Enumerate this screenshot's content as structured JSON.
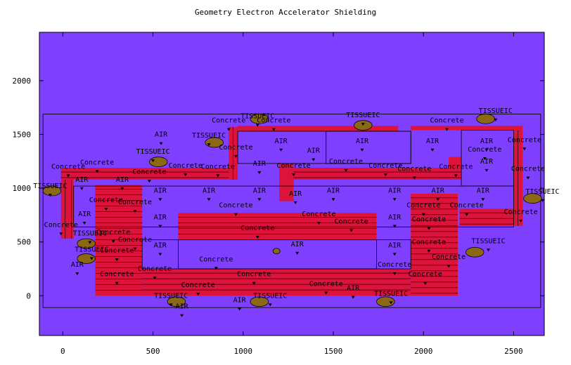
{
  "title": "Geometry Electron Accelerator Shielding",
  "colors": {
    "background": "#7f3fff",
    "concrete": "#dc143c",
    "tissue": "#8b6914",
    "line": "#000000"
  },
  "axes": {
    "x_ticks": [
      0,
      500,
      1000,
      1500,
      2000,
      2500
    ],
    "y_ticks": [
      0,
      500,
      1000,
      1500,
      2000
    ]
  },
  "chart_data": {
    "type": "geometry",
    "title": "Geometry Electron Accelerator Shielding",
    "xlim": [
      -130,
      2670
    ],
    "ylim": [
      -370,
      2450
    ],
    "regions": {
      "concrete": [
        [
          920,
          970,
          1080,
          1570
        ],
        [
          970,
          1860,
          1530,
          1580
        ],
        [
          1930,
          2550,
          1540,
          1580
        ],
        [
          2500,
          2550,
          650,
          1540
        ],
        [
          2200,
          2500,
          650,
          810
        ],
        [
          1200,
          1280,
          880,
          1230
        ],
        [
          1280,
          2210,
          1080,
          1190
        ],
        [
          2140,
          2210,
          1190,
          1290
        ],
        [
          -10,
          920,
          1080,
          1190
        ],
        [
          -10,
          60,
          530,
          1080
        ],
        [
          180,
          440,
          0,
          1030
        ],
        [
          440,
          1930,
          0,
          250
        ],
        [
          1930,
          2190,
          0,
          950
        ],
        [
          640,
          1740,
          520,
          770
        ]
      ],
      "tissue": [
        [
          -60,
          975,
          50,
          45
        ],
        [
          530,
          1245,
          50,
          45
        ],
        [
          840,
          1425,
          50,
          45
        ],
        [
          1090,
          1645,
          50,
          45
        ],
        [
          1665,
          1585,
          50,
          45
        ],
        [
          2345,
          1645,
          50,
          45
        ],
        [
          2605,
          905,
          50,
          45
        ],
        [
          2285,
          405,
          50,
          45
        ],
        [
          1790,
          -55,
          50,
          45
        ],
        [
          1090,
          -55,
          50,
          45
        ],
        [
          630,
          -55,
          50,
          45
        ],
        [
          130,
          485,
          50,
          45
        ],
        [
          130,
          345,
          50,
          45
        ],
        [
          1185,
          415,
          18,
          12
        ]
      ]
    },
    "labels": [
      {
        "text": "Concrete",
        "x": 920,
        "y": 1610
      },
      {
        "text": "TISSUEIC",
        "x": 1080,
        "y": 1650
      },
      {
        "text": "Concrete",
        "x": 1170,
        "y": 1610
      },
      {
        "text": "TISSUEIC",
        "x": 1665,
        "y": 1660
      },
      {
        "text": "Concrete",
        "x": 2130,
        "y": 1610
      },
      {
        "text": "TISSUEIC",
        "x": 2400,
        "y": 1700
      },
      {
        "text": "AIR",
        "x": 545,
        "y": 1480
      },
      {
        "text": "TISSUEIC",
        "x": 810,
        "y": 1470
      },
      {
        "text": "AIR",
        "x": 1210,
        "y": 1420
      },
      {
        "text": "AIR",
        "x": 1660,
        "y": 1420
      },
      {
        "text": "AIR",
        "x": 2050,
        "y": 1420
      },
      {
        "text": "AIR",
        "x": 2350,
        "y": 1420
      },
      {
        "text": "Concrete",
        "x": 2560,
        "y": 1430
      },
      {
        "text": "Concrete",
        "x": 960,
        "y": 1360
      },
      {
        "text": "AIR",
        "x": 1390,
        "y": 1330
      },
      {
        "text": "Concrete",
        "x": 2340,
        "y": 1340
      },
      {
        "text": "TISSUEIC",
        "x": 500,
        "y": 1320
      },
      {
        "text": "Concrete",
        "x": 190,
        "y": 1220
      },
      {
        "text": "Concrete",
        "x": 680,
        "y": 1190
      },
      {
        "text": "Concrete",
        "x": 860,
        "y": 1180
      },
      {
        "text": "AIR",
        "x": 1090,
        "y": 1210
      },
      {
        "text": "Concrete",
        "x": 1280,
        "y": 1190
      },
      {
        "text": "Concrete",
        "x": 1570,
        "y": 1230
      },
      {
        "text": "Concrete",
        "x": 1790,
        "y": 1190
      },
      {
        "text": "Concrete",
        "x": 1950,
        "y": 1160
      },
      {
        "text": "Concrete",
        "x": 2180,
        "y": 1180
      },
      {
        "text": "AIR",
        "x": 2350,
        "y": 1230
      },
      {
        "text": "Concrete",
        "x": 2580,
        "y": 1160
      },
      {
        "text": "Concrete",
        "x": 30,
        "y": 1180
      },
      {
        "text": "TISSUEIC",
        "x": -70,
        "y": 1000
      },
      {
        "text": "AIR",
        "x": 105,
        "y": 1060
      },
      {
        "text": "AIR",
        "x": 330,
        "y": 1060
      },
      {
        "text": "Concrete",
        "x": 480,
        "y": 1130
      },
      {
        "text": "AIR",
        "x": 540,
        "y": 960
      },
      {
        "text": "AIR",
        "x": 810,
        "y": 960
      },
      {
        "text": "AIR",
        "x": 1090,
        "y": 960
      },
      {
        "text": "AIR",
        "x": 1290,
        "y": 930
      },
      {
        "text": "AIR",
        "x": 1500,
        "y": 960
      },
      {
        "text": "AIR",
        "x": 1840,
        "y": 960
      },
      {
        "text": "AIR",
        "x": 2080,
        "y": 960
      },
      {
        "text": "AIR",
        "x": 2330,
        "y": 960
      },
      {
        "text": "TISSUEIC",
        "x": 2660,
        "y": 950
      },
      {
        "text": "Concrete",
        "x": 240,
        "y": 870
      },
      {
        "text": "Concrete",
        "x": 400,
        "y": 850
      },
      {
        "text": "Concrete",
        "x": 960,
        "y": 820
      },
      {
        "text": "Concrete",
        "x": 2000,
        "y": 820
      },
      {
        "text": "Concrete",
        "x": 2240,
        "y": 820
      },
      {
        "text": "Concrete",
        "x": 2540,
        "y": 760
      },
      {
        "text": "AIR",
        "x": 120,
        "y": 740
      },
      {
        "text": "AIR",
        "x": 540,
        "y": 710
      },
      {
        "text": "Concrete",
        "x": 1420,
        "y": 740
      },
      {
        "text": "Concrete",
        "x": 1600,
        "y": 670
      },
      {
        "text": "AIR",
        "x": 1840,
        "y": 710
      },
      {
        "text": "Concrete",
        "x": 2030,
        "y": 690
      },
      {
        "text": "Concrete",
        "x": -10,
        "y": 640
      },
      {
        "text": "Concrete",
        "x": 1080,
        "y": 610
      },
      {
        "text": "TISSUEIC",
        "x": 150,
        "y": 560
      },
      {
        "text": "Concrete",
        "x": 280,
        "y": 570
      },
      {
        "text": "Concrete",
        "x": 400,
        "y": 500
      },
      {
        "text": "AIR",
        "x": 540,
        "y": 450
      },
      {
        "text": "AIR",
        "x": 1300,
        "y": 460
      },
      {
        "text": "AIR",
        "x": 1840,
        "y": 450
      },
      {
        "text": "Concrete",
        "x": 2030,
        "y": 480
      },
      {
        "text": "TISSUEIC",
        "x": 2360,
        "y": 490
      },
      {
        "text": "TISSUEIC",
        "x": 160,
        "y": 410
      },
      {
        "text": "Concrete",
        "x": 300,
        "y": 400
      },
      {
        "text": "Concrete",
        "x": 2140,
        "y": 340
      },
      {
        "text": "AIR",
        "x": 80,
        "y": 270
      },
      {
        "text": "Concrete",
        "x": 850,
        "y": 320
      },
      {
        "text": "Concrete",
        "x": 1840,
        "y": 270
      },
      {
        "text": "Concrete",
        "x": 510,
        "y": 230
      },
      {
        "text": "Concrete",
        "x": 300,
        "y": 180
      },
      {
        "text": "Concrete",
        "x": 1060,
        "y": 180
      },
      {
        "text": "Concrete",
        "x": 2010,
        "y": 180
      },
      {
        "text": "Concrete",
        "x": 750,
        "y": 80
      },
      {
        "text": "Concrete",
        "x": 1460,
        "y": 90
      },
      {
        "text": "AIR",
        "x": 1610,
        "y": 50
      },
      {
        "text": "TISSUEIC",
        "x": 600,
        "y": -20
      },
      {
        "text": "TISSUEIC",
        "x": 1150,
        "y": -20
      },
      {
        "text": "TISSUEIC",
        "x": 1820,
        "y": 0
      },
      {
        "text": "AIR",
        "x": 980,
        "y": -60
      },
      {
        "text": "AIR",
        "x": 660,
        "y": -120
      }
    ]
  }
}
